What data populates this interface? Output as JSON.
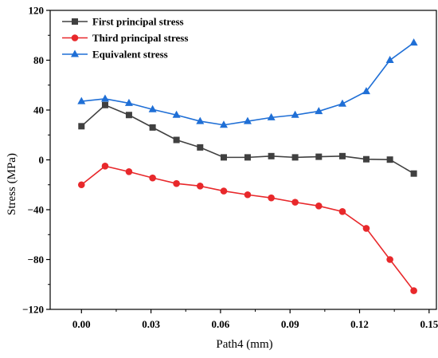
{
  "chart_data": {
    "type": "line",
    "title": "",
    "xlabel": "Path4 (mm)",
    "ylabel": "Stress (MPa)",
    "xlim": [
      -0.0135,
      0.1535
    ],
    "ylim": [
      -120,
      120
    ],
    "xticks": [
      0.0,
      0.03,
      0.06,
      0.09,
      0.12,
      0.15
    ],
    "xtick_labels": [
      "0.00",
      "0.03",
      "0.06",
      "0.09",
      "0.12",
      "0.15"
    ],
    "yticks": [
      -120,
      -80,
      -40,
      0,
      40,
      80,
      120
    ],
    "ytick_labels": [
      "−120",
      "−80",
      "−40",
      "0",
      "40",
      "80",
      "120"
    ],
    "grid": false,
    "legend_position": "top-left",
    "x": [
      0.0,
      0.0102,
      0.0205,
      0.0307,
      0.041,
      0.0512,
      0.0614,
      0.0717,
      0.0819,
      0.0922,
      0.1024,
      0.1126,
      0.1229,
      0.1331,
      0.1434
    ],
    "series": [
      {
        "name": "First principal stress",
        "color": "#404040",
        "marker": "square",
        "values": [
          27,
          44,
          36,
          26,
          16,
          10,
          2,
          2,
          3,
          2,
          2.5,
          3,
          0.5,
          0.2,
          -11
        ]
      },
      {
        "name": "Third principal stress",
        "color": "#e8282b",
        "marker": "circle",
        "values": [
          -20,
          -5,
          -9.5,
          -14.5,
          -19,
          -21,
          -25,
          -28,
          -30.5,
          -34,
          -37,
          -41.5,
          -55,
          -80,
          -105
        ]
      },
      {
        "name": "Equivalent stress",
        "color": "#1f6fd6",
        "marker": "triangle",
        "values": [
          47,
          49,
          45.5,
          40.5,
          36,
          31,
          28,
          31,
          34,
          36,
          39,
          45,
          55,
          80,
          94
        ]
      }
    ]
  }
}
